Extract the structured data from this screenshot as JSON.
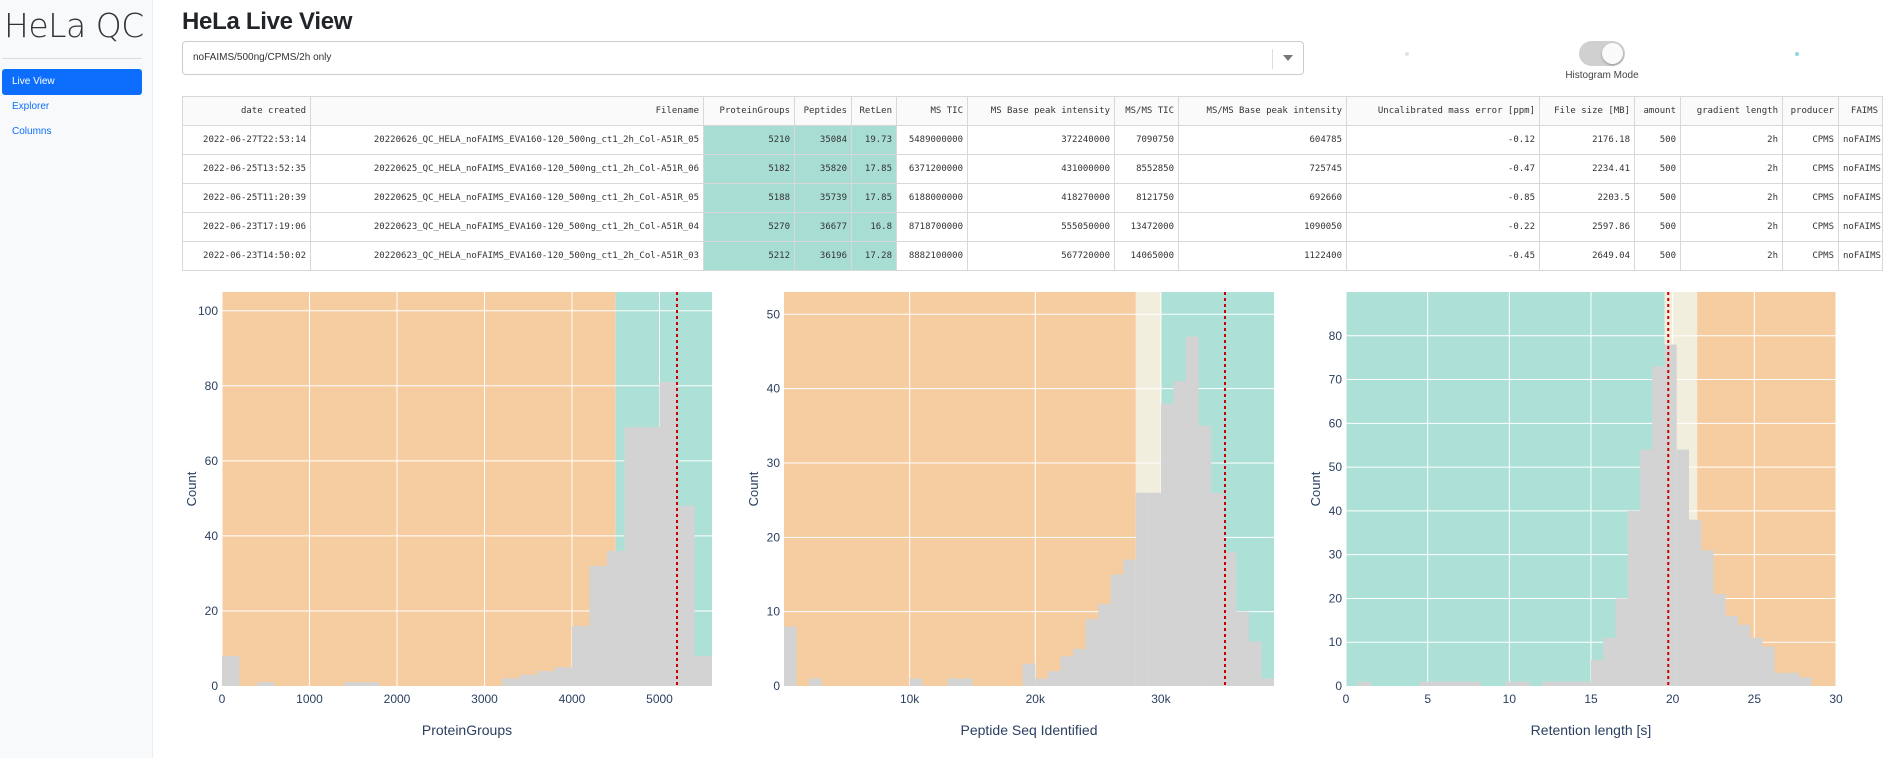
{
  "app": {
    "title": "HeLa QC",
    "nav": [
      {
        "label": "Live View",
        "active": true
      },
      {
        "label": "Explorer",
        "active": false
      },
      {
        "label": "Columns",
        "active": false
      }
    ]
  },
  "page": {
    "title": "HeLa Live View",
    "filter": {
      "selected": "noFAIMS/500ng/CPMS/2h only"
    },
    "toggle": {
      "label": "Histogram Mode",
      "on": false
    },
    "indicator_colors": {
      "left_dot": "#dde4e8",
      "right_dot": "#8fd4e0"
    }
  },
  "table": {
    "columns": [
      "date created",
      "Filename",
      "ProteinGroups",
      "Peptides",
      "RetLen",
      "MS TIC",
      "MS Base peak intensity",
      "MS/MS TIC",
      "MS/MS Base peak intensity",
      "Uncalibrated mass error [ppm]",
      "File size [MB]",
      "amount",
      "gradient length",
      "producer",
      "FAIMS"
    ],
    "highlight_columns": [
      2,
      3,
      4
    ],
    "highlight_color": "#a8ddd3",
    "rows": [
      [
        "2022-06-27T22:53:14",
        "20220626_QC_HELA_noFAIMS_EVA160-120_500ng_ct1_2h_Col-A51R_05",
        "5210",
        "35084",
        "19.73",
        "5489000000",
        "372240000",
        "7090750",
        "604785",
        "-0.12",
        "2176.18",
        "500",
        "2h",
        "CPMS",
        "noFAIMS"
      ],
      [
        "2022-06-25T13:52:35",
        "20220625_QC_HELA_noFAIMS_EVA160-120_500ng_ct1_2h_Col-A51R_06",
        "5182",
        "35820",
        "17.85",
        "6371200000",
        "431000000",
        "8552850",
        "725745",
        "-0.47",
        "2234.41",
        "500",
        "2h",
        "CPMS",
        "noFAIMS"
      ],
      [
        "2022-06-25T11:20:39",
        "20220625_QC_HELA_noFAIMS_EVA160-120_500ng_ct1_2h_Col-A51R_05",
        "5188",
        "35739",
        "17.85",
        "6188000000",
        "418270000",
        "8121750",
        "692660",
        "-0.85",
        "2203.5",
        "500",
        "2h",
        "CPMS",
        "noFAIMS"
      ],
      [
        "2022-06-23T17:19:06",
        "20220623_QC_HELA_noFAIMS_EVA160-120_500ng_ct1_2h_Col-A51R_04",
        "5270",
        "36677",
        "16.8",
        "8718700000",
        "555050000",
        "13472000",
        "1090050",
        "-0.22",
        "2597.86",
        "500",
        "2h",
        "CPMS",
        "noFAIMS"
      ],
      [
        "2022-06-23T14:50:02",
        "20220623_QC_HELA_noFAIMS_EVA160-120_500ng_ct1_2h_Col-A51R_03",
        "5212",
        "36196",
        "17.28",
        "8882100000",
        "567720000",
        "14065000",
        "1122400",
        "-0.45",
        "2649.04",
        "500",
        "2h",
        "CPMS",
        "noFAIMS"
      ]
    ]
  },
  "colors": {
    "bad": "#f6cda0",
    "good": "#ade0d6",
    "neutral": "#f2eedd",
    "bars": "#d3d3d3",
    "marker": "#cc0000",
    "grid": "#ffffff"
  },
  "chart_data": [
    {
      "type": "bar",
      "xlabel": "ProteinGroups",
      "ylabel": "Count",
      "xlim": [
        0,
        5600
      ],
      "ylim": [
        0,
        105
      ],
      "xticks": [
        0,
        1000,
        2000,
        3000,
        4000,
        5000
      ],
      "xticklabels": [
        "0",
        "1000",
        "2000",
        "3000",
        "4000",
        "5000"
      ],
      "yticks": [
        0,
        20,
        40,
        60,
        80,
        100
      ],
      "bin_start": 0,
      "bin_width": 200,
      "counts": [
        8,
        0,
        1,
        0,
        0,
        0,
        0,
        1,
        1,
        0,
        0,
        0,
        0,
        0,
        0,
        0,
        2,
        3,
        4,
        5,
        16,
        32,
        36,
        69,
        69,
        81,
        48,
        8
      ],
      "marker": 5200,
      "zones": [
        {
          "from": 0,
          "to": 4500,
          "state": "bad"
        },
        {
          "from": 4500,
          "to": 5600,
          "state": "good"
        }
      ]
    },
    {
      "type": "bar",
      "xlabel": "Peptide Seq Identified",
      "ylabel": "Count",
      "xlim": [
        0,
        39000
      ],
      "ylim": [
        0,
        53
      ],
      "xticks": [
        10000,
        20000,
        30000
      ],
      "xticklabels": [
        "10k",
        "20k",
        "30k"
      ],
      "yticks": [
        0,
        10,
        20,
        30,
        40,
        50
      ],
      "bin_start": 0,
      "bin_width": 1000,
      "counts": [
        8,
        0,
        1,
        0,
        0,
        0,
        0,
        0,
        0,
        0,
        1,
        0,
        0,
        1,
        1,
        0,
        0,
        0,
        0,
        3,
        1,
        2,
        4,
        5,
        9,
        11,
        15,
        17,
        26,
        26,
        38,
        41,
        47,
        35,
        26,
        18,
        10,
        6,
        1
      ],
      "marker": 35100,
      "zones": [
        {
          "from": 0,
          "to": 28000,
          "state": "bad"
        },
        {
          "from": 28000,
          "to": 30000,
          "state": "neutral"
        },
        {
          "from": 30000,
          "to": 39000,
          "state": "good"
        }
      ]
    },
    {
      "type": "bar",
      "xlabel": "Retention length [s]",
      "ylabel": "Count",
      "xlim": [
        0,
        30
      ],
      "ylim": [
        0,
        90
      ],
      "xticks": [
        0,
        5,
        10,
        15,
        20,
        25,
        30
      ],
      "xticklabels": [
        "0",
        "5",
        "10",
        "15",
        "20",
        "25",
        "30"
      ],
      "yticks": [
        0,
        10,
        20,
        30,
        40,
        50,
        60,
        70,
        80
      ],
      "bin_start": 0,
      "bin_width": 0.75,
      "counts": [
        0,
        1,
        0,
        0,
        0,
        0,
        1,
        1,
        1,
        1,
        1,
        0,
        0,
        1,
        1,
        0,
        1,
        1,
        1,
        1,
        6,
        11,
        20,
        40,
        54,
        73,
        78,
        54,
        38,
        31,
        21,
        16,
        14,
        11,
        9,
        3,
        3,
        2,
        0,
        0
      ],
      "marker": 19.73,
      "zones": [
        {
          "from": 0,
          "to": 19.5,
          "state": "good"
        },
        {
          "from": 19.5,
          "to": 21.5,
          "state": "neutral"
        },
        {
          "from": 21.5,
          "to": 30,
          "state": "bad"
        }
      ]
    }
  ]
}
